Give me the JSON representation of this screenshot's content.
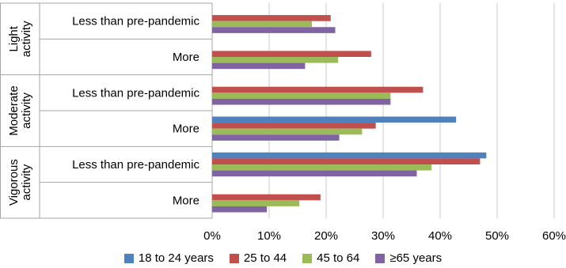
{
  "chart_data": {
    "type": "bar",
    "orientation": "horizontal",
    "groups": [
      {
        "label_lines": [
          "Light",
          "activity"
        ],
        "categories": [
          "Less than pre-pandemic",
          "More"
        ]
      },
      {
        "label_lines": [
          "Moderate",
          "activity"
        ],
        "categories": [
          "Less than pre-pandemic",
          "More"
        ]
      },
      {
        "label_lines": [
          "Vigorous",
          "activity"
        ],
        "categories": [
          "Less than pre-pandemic",
          "More"
        ]
      }
    ],
    "series": [
      {
        "name": "18 to 24 years",
        "color": "#4f81bd",
        "values": [
          null,
          null,
          null,
          42.8,
          48.1,
          null
        ]
      },
      {
        "name": "25 to 44",
        "color": "#c0504d",
        "values": [
          20.8,
          27.9,
          37.0,
          28.7,
          47.0,
          19.0
        ]
      },
      {
        "name": "45 to 64",
        "color": "#9bbb59",
        "values": [
          17.5,
          22.1,
          31.3,
          26.3,
          38.5,
          15.3
        ]
      },
      {
        "name": "≥65 years",
        "color": "#8064a2",
        "values": [
          21.6,
          16.3,
          31.3,
          22.3,
          35.9,
          9.6
        ]
      }
    ],
    "xlim": [
      0,
      60
    ],
    "xticks": [
      "0%",
      "10%",
      "20%",
      "30%",
      "40%",
      "50%",
      "60%"
    ],
    "grid": true,
    "legend_position": "bottom"
  }
}
